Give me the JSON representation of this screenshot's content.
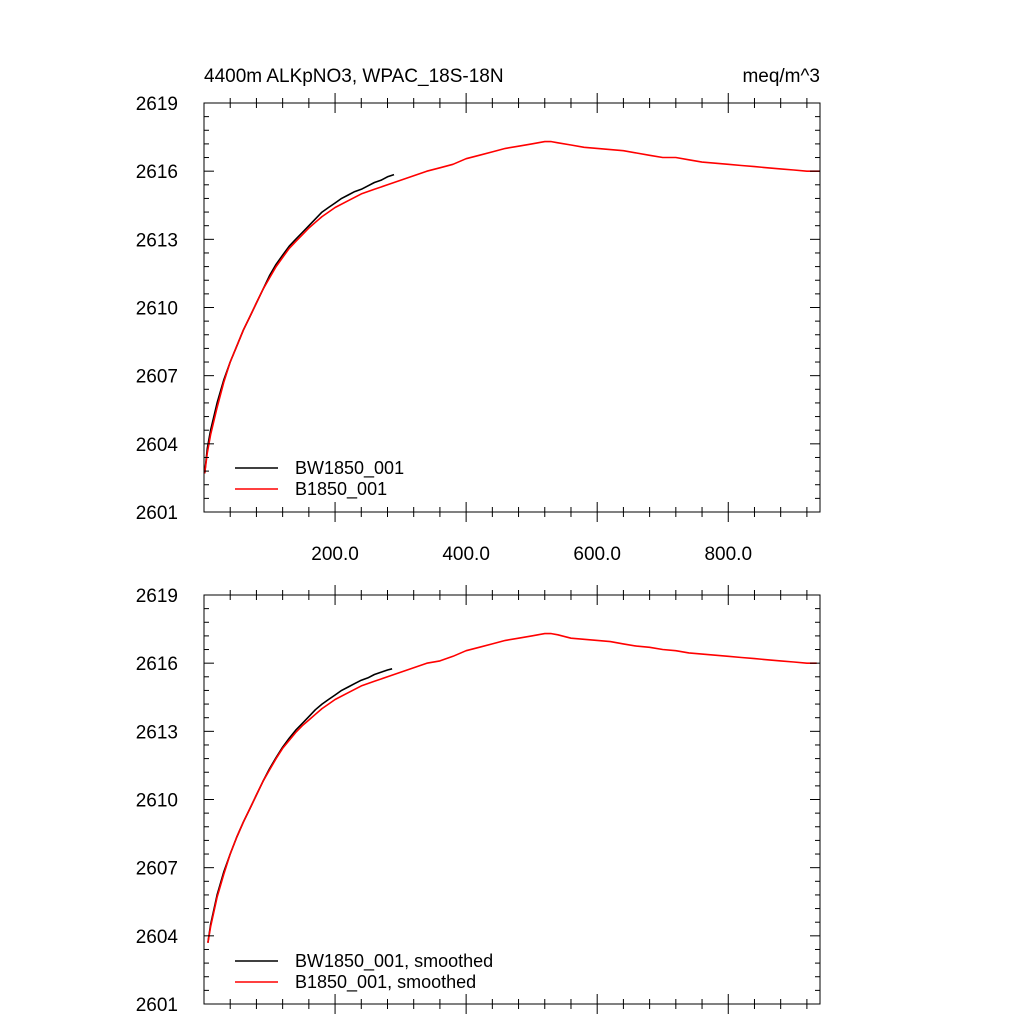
{
  "figure": {
    "title_left": "4400m ALKpNO3, WPAC_18S-18N",
    "title_right": "meq/m^3"
  },
  "chart_data": [
    {
      "type": "line",
      "title": "4400m ALKpNO3, WPAC_18S-18N",
      "units": "meq/m^3",
      "xlim": [
        0,
        940
      ],
      "ylim": [
        2601,
        2619
      ],
      "x_ticks": [
        200,
        400,
        600,
        800
      ],
      "x_tick_labels": [
        "200.0",
        "400.0",
        "600.0",
        "800.0"
      ],
      "y_ticks": [
        2601,
        2604,
        2607,
        2610,
        2613,
        2616,
        2619
      ],
      "y_tick_labels": [
        "2601",
        "2604",
        "2607",
        "2610",
        "2613",
        "2616",
        "2619"
      ],
      "legend_position": "bottom-left",
      "grid": false,
      "series": [
        {
          "name": "BW1850_001",
          "color": "#000000",
          "x": [
            1,
            5,
            10,
            20,
            30,
            40,
            50,
            60,
            70,
            80,
            90,
            100,
            110,
            120,
            130,
            140,
            150,
            160,
            170,
            180,
            190,
            200,
            210,
            220,
            230,
            240,
            250,
            260,
            270,
            280,
            290
          ],
          "y": [
            2602.7,
            2603.8,
            2604.6,
            2605.8,
            2606.8,
            2607.6,
            2608.3,
            2609.0,
            2609.6,
            2610.2,
            2610.8,
            2611.4,
            2611.9,
            2612.3,
            2612.7,
            2613.0,
            2613.3,
            2613.6,
            2613.9,
            2614.2,
            2614.4,
            2614.6,
            2614.8,
            2614.95,
            2615.1,
            2615.2,
            2615.35,
            2615.5,
            2615.6,
            2615.75,
            2615.85
          ]
        },
        {
          "name": "B1850_001",
          "color": "#ff0000",
          "x": [
            1,
            5,
            10,
            20,
            30,
            40,
            50,
            60,
            70,
            80,
            90,
            100,
            110,
            120,
            130,
            140,
            150,
            160,
            170,
            180,
            190,
            200,
            220,
            240,
            260,
            280,
            300,
            320,
            340,
            360,
            380,
            400,
            420,
            440,
            460,
            480,
            500,
            520,
            530,
            540,
            560,
            580,
            600,
            620,
            640,
            660,
            680,
            700,
            720,
            740,
            760,
            780,
            800,
            820,
            840,
            860,
            880,
            900,
            920,
            940
          ],
          "y": [
            2602.7,
            2603.6,
            2604.4,
            2605.6,
            2606.7,
            2607.6,
            2608.3,
            2609.0,
            2609.6,
            2610.2,
            2610.8,
            2611.3,
            2611.8,
            2612.2,
            2612.6,
            2612.9,
            2613.2,
            2613.5,
            2613.75,
            2614.0,
            2614.2,
            2614.4,
            2614.7,
            2615.0,
            2615.2,
            2615.4,
            2615.6,
            2615.8,
            2616.0,
            2616.15,
            2616.3,
            2616.55,
            2616.7,
            2616.85,
            2617.0,
            2617.1,
            2617.2,
            2617.3,
            2617.3,
            2617.25,
            2617.15,
            2617.05,
            2617.0,
            2616.95,
            2616.9,
            2616.8,
            2616.7,
            2616.6,
            2616.6,
            2616.5,
            2616.4,
            2616.35,
            2616.3,
            2616.25,
            2616.2,
            2616.15,
            2616.1,
            2616.05,
            2616.0,
            2616.0
          ]
        }
      ]
    },
    {
      "type": "line",
      "xlim": [
        0,
        940
      ],
      "ylim": [
        2601,
        2619
      ],
      "x_ticks": [
        200,
        400,
        600,
        800
      ],
      "y_ticks": [
        2601,
        2604,
        2607,
        2610,
        2613,
        2616,
        2619
      ],
      "y_tick_labels": [
        "2601",
        "2604",
        "2607",
        "2610",
        "2613",
        "2616",
        "2619"
      ],
      "legend_position": "bottom-left",
      "grid": false,
      "series": [
        {
          "name": "BW1850_001, smoothed",
          "color": "#000000",
          "x": [
            6,
            10,
            20,
            30,
            40,
            50,
            60,
            70,
            80,
            90,
            100,
            110,
            120,
            130,
            140,
            150,
            160,
            170,
            180,
            190,
            200,
            210,
            220,
            230,
            240,
            250,
            260,
            270,
            280,
            287
          ],
          "y": [
            2603.7,
            2604.5,
            2605.8,
            2606.8,
            2607.6,
            2608.35,
            2609.0,
            2609.6,
            2610.2,
            2610.8,
            2611.35,
            2611.85,
            2612.3,
            2612.7,
            2613.05,
            2613.35,
            2613.65,
            2613.95,
            2614.2,
            2614.4,
            2614.6,
            2614.8,
            2614.95,
            2615.1,
            2615.25,
            2615.35,
            2615.5,
            2615.6,
            2615.7,
            2615.75
          ]
        },
        {
          "name": "B1850_001, smoothed",
          "color": "#ff0000",
          "x": [
            6,
            10,
            20,
            30,
            40,
            50,
            60,
            70,
            80,
            90,
            100,
            110,
            120,
            130,
            140,
            150,
            160,
            170,
            180,
            190,
            200,
            220,
            240,
            260,
            280,
            300,
            320,
            340,
            360,
            380,
            400,
            420,
            440,
            460,
            480,
            500,
            520,
            530,
            540,
            560,
            580,
            600,
            620,
            640,
            660,
            680,
            700,
            720,
            740,
            760,
            780,
            800,
            820,
            840,
            860,
            880,
            900,
            920,
            935
          ],
          "y": [
            2603.7,
            2604.4,
            2605.7,
            2606.7,
            2607.6,
            2608.35,
            2609.0,
            2609.6,
            2610.2,
            2610.8,
            2611.3,
            2611.8,
            2612.25,
            2612.6,
            2612.95,
            2613.25,
            2613.5,
            2613.75,
            2614.0,
            2614.2,
            2614.4,
            2614.7,
            2615.0,
            2615.2,
            2615.4,
            2615.6,
            2615.8,
            2616.0,
            2616.1,
            2616.3,
            2616.55,
            2616.7,
            2616.85,
            2617.0,
            2617.1,
            2617.2,
            2617.3,
            2617.3,
            2617.25,
            2617.1,
            2617.05,
            2617.0,
            2616.95,
            2616.85,
            2616.75,
            2616.7,
            2616.6,
            2616.55,
            2616.45,
            2616.4,
            2616.35,
            2616.3,
            2616.25,
            2616.2,
            2616.15,
            2616.1,
            2616.05,
            2616.0,
            2616.0
          ]
        }
      ]
    }
  ]
}
